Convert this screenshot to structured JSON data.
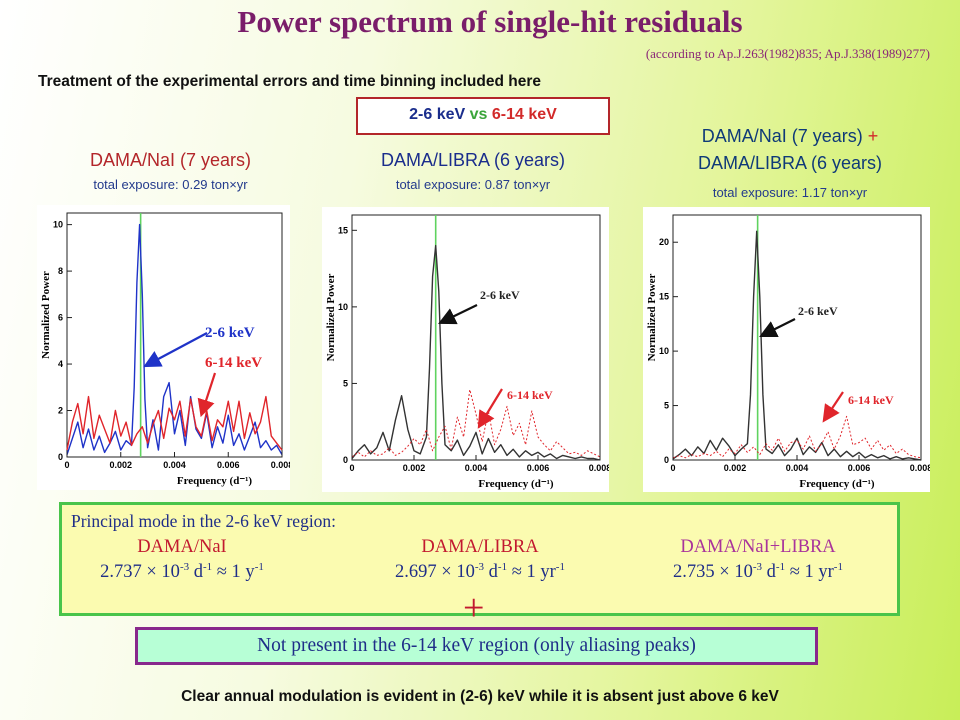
{
  "title": "Power spectrum of single-hit residuals",
  "citation": "(according to Ap.J.263(1982)835; Ap.J.338(1989)277)",
  "treatment": "Treatment of the experimental errors and time binning included here",
  "energy_box": {
    "low": "2-6 keV",
    "vs": "vs",
    "high": "6-14 keV"
  },
  "columns": [
    {
      "title": "DAMA/NaI (7 years)",
      "exposure": "total exposure: 0.29 ton×yr"
    },
    {
      "title": "DAMA/LIBRA (6 years)",
      "exposure": "total exposure: 0.87 ton×yr"
    },
    {
      "title_line1": "DAMA/NaI (7 years)",
      "plus": "+",
      "title_line2": "DAMA/LIBRA (6 years)",
      "exposure": "total exposure: 1.17 ton×yr"
    }
  ],
  "principal": {
    "heading": "Principal mode in the 2-6 keV region:",
    "entries": [
      {
        "name": "DAMA/NaI",
        "value": "2.737",
        "times": "× 10",
        "exp": "-3",
        "unit1": " d",
        "unit1exp": "-1",
        "approx": " ≈ 1 y",
        "unit2exp": "-1"
      },
      {
        "name": "DAMA/LIBRA",
        "value": "2.697",
        "times": "× 10",
        "exp": "-3",
        "unit1": " d",
        "unit1exp": "-1",
        "approx": " ≈ 1 yr",
        "unit2exp": "-1"
      },
      {
        "name": "DAMA/NaI+LIBRA",
        "value": "2.735",
        "times": "× 10",
        "exp": "-3",
        "unit1": " d",
        "unit1exp": "-1",
        "approx": " ≈ 1 yr",
        "unit2exp": "-1"
      }
    ]
  },
  "plus_sign": "+",
  "not_present": "Not present in the 6-14 keV region (only aliasing peaks)",
  "footer": "Clear annual modulation is evident in (2-6) keV while it is absent just above 6 keV",
  "colors": {
    "title": "#7a1d6a",
    "red": "#b3262a",
    "blue": "#1a2d8c",
    "green_line": "#5fd35f",
    "series_2_6_nai": "#1f33c8",
    "series_6_14": "#e0252b",
    "series_2_6_dark": "#333333"
  },
  "chart_data": [
    {
      "type": "line",
      "xlabel": "Frequency (d⁻¹)",
      "ylabel": "Normalized Power",
      "xlim": [
        0,
        0.008
      ],
      "ylim": [
        0,
        10.5
      ],
      "xticks": [
        "0",
        "0.002",
        "0.004",
        "0.006",
        "0.008"
      ],
      "yticks": [
        "0",
        "2",
        "4",
        "6",
        "8",
        "10"
      ],
      "marker_x": 0.00274,
      "labels": [
        {
          "text": "2-6 keV",
          "series": 0
        },
        {
          "text": "6-14 keV",
          "series": 1
        }
      ],
      "series": [
        {
          "name": "2-6 keV",
          "color": "#1f33c8",
          "style": "solid",
          "x": [
            0.0,
            0.0002,
            0.0004,
            0.0006,
            0.0008,
            0.001,
            0.0012,
            0.0014,
            0.0016,
            0.0018,
            0.002,
            0.0022,
            0.0024,
            0.0025,
            0.0026,
            0.0027,
            0.0028,
            0.0029,
            0.003,
            0.0032,
            0.0034,
            0.0036,
            0.0038,
            0.004,
            0.0042,
            0.0044,
            0.0046,
            0.0048,
            0.005,
            0.0052,
            0.0054,
            0.0056,
            0.0058,
            0.006,
            0.0062,
            0.0064,
            0.0066,
            0.0068,
            0.007,
            0.0072,
            0.0074,
            0.0076,
            0.0078,
            0.008
          ],
          "y": [
            0.1,
            0.8,
            1.5,
            0.4,
            1.2,
            0.3,
            0.9,
            0.2,
            0.6,
            1.1,
            0.3,
            0.7,
            0.5,
            3.0,
            7.5,
            10.0,
            7.0,
            2.5,
            0.4,
            1.6,
            0.3,
            2.6,
            3.2,
            1.0,
            2.0,
            0.5,
            2.6,
            1.2,
            0.8,
            1.9,
            0.4,
            1.3,
            0.6,
            1.8,
            0.5,
            1.0,
            0.3,
            0.9,
            1.5,
            0.4,
            0.7,
            0.3,
            0.5,
            0.1
          ]
        },
        {
          "name": "6-14 keV",
          "color": "#e0252b",
          "style": "solid",
          "x": [
            0.0,
            0.0002,
            0.0004,
            0.0006,
            0.0008,
            0.001,
            0.0012,
            0.0014,
            0.0016,
            0.0018,
            0.002,
            0.0022,
            0.0024,
            0.0026,
            0.0028,
            0.003,
            0.0032,
            0.0034,
            0.0036,
            0.0038,
            0.004,
            0.0042,
            0.0044,
            0.0046,
            0.0048,
            0.005,
            0.0052,
            0.0054,
            0.0056,
            0.0058,
            0.006,
            0.0062,
            0.0064,
            0.0066,
            0.0068,
            0.007,
            0.0072,
            0.0074,
            0.0076,
            0.0078,
            0.008
          ],
          "y": [
            0.3,
            1.5,
            2.3,
            1.0,
            2.6,
            0.8,
            1.8,
            1.2,
            0.6,
            2.0,
            0.9,
            1.5,
            0.5,
            1.0,
            1.3,
            0.6,
            1.4,
            2.0,
            0.8,
            2.1,
            1.6,
            2.4,
            0.9,
            2.5,
            1.3,
            0.9,
            2.0,
            0.7,
            1.6,
            1.3,
            2.4,
            1.1,
            2.4,
            0.8,
            1.9,
            1.0,
            1.5,
            2.6,
            0.9,
            0.6,
            0.3
          ]
        }
      ]
    },
    {
      "type": "line",
      "xlabel": "Frequency (d⁻¹)",
      "ylabel": "Normalized Power",
      "xlim": [
        0,
        0.008
      ],
      "ylim": [
        0,
        16
      ],
      "xticks": [
        "0",
        "0.002",
        "0.004",
        "0.006",
        "0.008"
      ],
      "yticks": [
        "0",
        "5",
        "10",
        "15"
      ],
      "marker_x": 0.0027,
      "labels": [
        {
          "text": "2-6 keV",
          "series": 0
        },
        {
          "text": "6-14 keV",
          "series": 1
        }
      ],
      "series": [
        {
          "name": "2-6 keV",
          "color": "#333333",
          "style": "solid",
          "x": [
            0.0,
            0.0002,
            0.0004,
            0.0006,
            0.0008,
            0.001,
            0.0012,
            0.0014,
            0.0016,
            0.0018,
            0.002,
            0.0022,
            0.0024,
            0.0025,
            0.0026,
            0.0027,
            0.0028,
            0.0029,
            0.003,
            0.0032,
            0.0034,
            0.0036,
            0.0038,
            0.004,
            0.0042,
            0.0044,
            0.0046,
            0.0048,
            0.005,
            0.0052,
            0.0054,
            0.0056,
            0.0058,
            0.006,
            0.0062,
            0.0064,
            0.0066,
            0.0068,
            0.007,
            0.0072,
            0.0074,
            0.0076,
            0.0078,
            0.008
          ],
          "y": [
            0.1,
            0.6,
            1.0,
            0.4,
            0.8,
            1.8,
            0.6,
            2.6,
            4.2,
            2.0,
            0.6,
            0.4,
            1.5,
            6.0,
            12.0,
            14.0,
            11.0,
            5.0,
            1.0,
            0.6,
            1.3,
            0.3,
            0.9,
            1.8,
            0.4,
            1.4,
            0.5,
            1.0,
            0.3,
            0.7,
            0.2,
            0.6,
            0.3,
            0.5,
            0.2,
            0.4,
            0.1,
            0.3,
            0.2,
            0.1,
            0.2,
            0.1,
            0.1,
            0.0
          ]
        },
        {
          "name": "6-14 keV",
          "color": "#e0252b",
          "style": "dotted",
          "x": [
            0.0,
            0.0002,
            0.0004,
            0.0006,
            0.0008,
            0.001,
            0.0012,
            0.0014,
            0.0016,
            0.0018,
            0.002,
            0.0022,
            0.0024,
            0.0026,
            0.0028,
            0.003,
            0.0032,
            0.0034,
            0.0036,
            0.0038,
            0.004,
            0.0042,
            0.0044,
            0.0046,
            0.0048,
            0.005,
            0.0052,
            0.0054,
            0.0056,
            0.0058,
            0.006,
            0.0062,
            0.0064,
            0.0066,
            0.0068,
            0.007,
            0.0072,
            0.0074,
            0.0076,
            0.0078,
            0.008
          ],
          "y": [
            0.2,
            0.5,
            0.2,
            0.6,
            0.3,
            0.4,
            0.8,
            0.3,
            0.5,
            0.9,
            1.4,
            1.0,
            2.0,
            0.6,
            1.5,
            2.2,
            0.7,
            2.8,
            1.5,
            4.6,
            3.0,
            1.2,
            3.2,
            1.0,
            2.0,
            3.5,
            1.6,
            2.4,
            1.0,
            3.2,
            1.5,
            1.0,
            0.6,
            1.2,
            0.8,
            0.4,
            0.5,
            0.3,
            0.6,
            0.4,
            0.2
          ]
        }
      ]
    },
    {
      "type": "line",
      "xlabel": "Frequency (d⁻¹)",
      "ylabel": "Normalized Power",
      "xlim": [
        0,
        0.008
      ],
      "ylim": [
        0,
        22.5
      ],
      "xticks": [
        "0",
        "0.002",
        "0.004",
        "0.006",
        "0.008"
      ],
      "yticks": [
        "0",
        "5",
        "10",
        "15",
        "20"
      ],
      "marker_x": 0.00273,
      "labels": [
        {
          "text": "2-6 keV",
          "series": 0
        },
        {
          "text": "6-14 keV",
          "series": 1
        }
      ],
      "series": [
        {
          "name": "2-6 keV",
          "color": "#333333",
          "style": "solid",
          "x": [
            0.0,
            0.0002,
            0.0004,
            0.0006,
            0.0008,
            0.001,
            0.0012,
            0.0014,
            0.0016,
            0.0018,
            0.002,
            0.0022,
            0.0024,
            0.0025,
            0.0026,
            0.0027,
            0.0028,
            0.0029,
            0.003,
            0.0032,
            0.0034,
            0.0036,
            0.0038,
            0.004,
            0.0042,
            0.0044,
            0.0046,
            0.0048,
            0.005,
            0.0052,
            0.0054,
            0.0056,
            0.0058,
            0.006,
            0.0062,
            0.0064,
            0.0066,
            0.0068,
            0.007,
            0.0072,
            0.0074,
            0.0076,
            0.0078,
            0.008
          ],
          "y": [
            0.1,
            0.5,
            1.0,
            0.4,
            1.2,
            0.6,
            1.8,
            0.9,
            2.0,
            1.3,
            0.4,
            1.0,
            1.5,
            6.0,
            15.0,
            21.0,
            15.0,
            6.0,
            1.0,
            0.6,
            1.4,
            0.4,
            1.0,
            2.0,
            0.5,
            1.2,
            0.7,
            1.6,
            0.4,
            1.0,
            0.3,
            0.8,
            0.3,
            0.7,
            0.2,
            0.5,
            0.2,
            0.4,
            0.1,
            0.3,
            0.1,
            0.2,
            0.1,
            0.0
          ]
        },
        {
          "name": "6-14 keV",
          "color": "#e0252b",
          "style": "dotted",
          "x": [
            0.0,
            0.0002,
            0.0004,
            0.0006,
            0.0008,
            0.001,
            0.0012,
            0.0014,
            0.0016,
            0.0018,
            0.002,
            0.0022,
            0.0024,
            0.0026,
            0.0028,
            0.003,
            0.0032,
            0.0034,
            0.0036,
            0.0038,
            0.004,
            0.0042,
            0.0044,
            0.0046,
            0.0048,
            0.005,
            0.0052,
            0.0054,
            0.0056,
            0.0058,
            0.006,
            0.0062,
            0.0064,
            0.0066,
            0.0068,
            0.007,
            0.0072,
            0.0074,
            0.0076,
            0.0078,
            0.008
          ],
          "y": [
            0.2,
            0.4,
            0.2,
            0.5,
            0.3,
            0.6,
            0.4,
            0.8,
            0.3,
            1.0,
            0.6,
            1.4,
            0.7,
            1.2,
            0.5,
            1.5,
            0.9,
            2.0,
            0.8,
            1.6,
            1.8,
            1.0,
            2.2,
            0.8,
            1.5,
            2.6,
            1.0,
            2.2,
            4.0,
            1.4,
            1.6,
            2.0,
            1.0,
            1.8,
            0.9,
            1.4,
            0.6,
            1.0,
            0.5,
            0.3,
            0.2
          ]
        }
      ]
    }
  ]
}
